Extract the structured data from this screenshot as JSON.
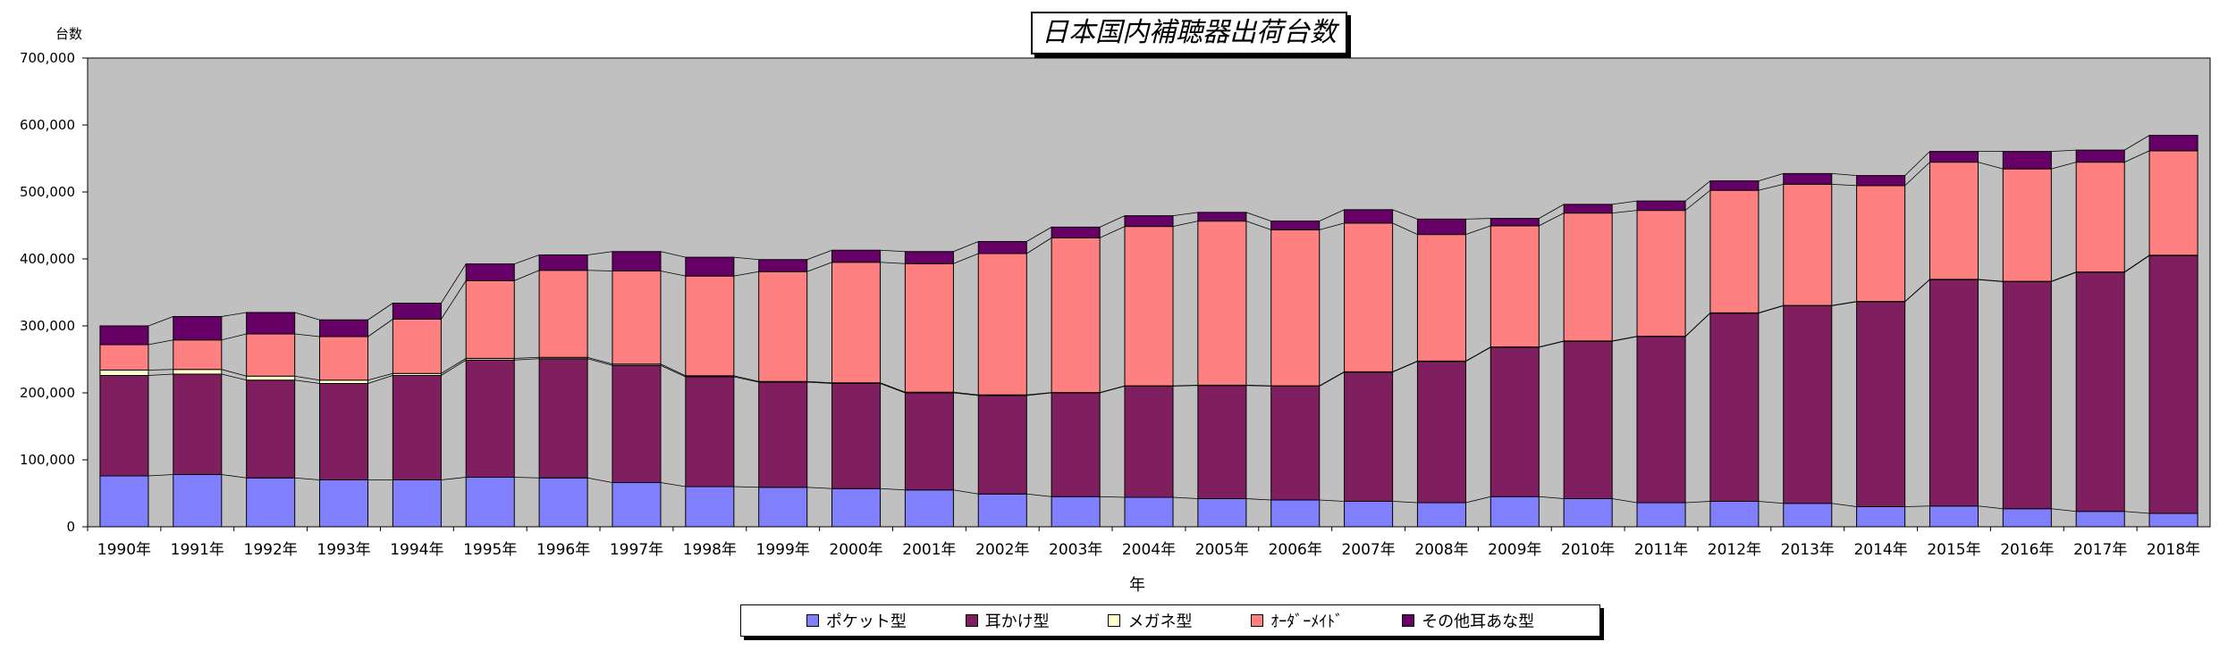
{
  "chart_data": {
    "type": "bar",
    "stacked": true,
    "title": "日本国内補聴器出荷台数",
    "xlabel": "年",
    "ylabel": "台数",
    "ylim": [
      0,
      700000
    ],
    "yticks": [
      "0",
      "100,000",
      "200,000",
      "300,000",
      "400,000",
      "500,000",
      "600,000",
      "700,000"
    ],
    "grid": false,
    "legend_position": "bottom",
    "plot_background": "#c0c0c0",
    "categories": [
      "1990年",
      "1991年",
      "1992年",
      "1993年",
      "1994年",
      "1995年",
      "1996年",
      "1997年",
      "1998年",
      "1999年",
      "2000年",
      "2001年",
      "2002年",
      "2003年",
      "2004年",
      "2005年",
      "2006年",
      "2007年",
      "2008年",
      "2009年",
      "2010年",
      "2011年",
      "2012年",
      "2013年",
      "2014年",
      "2015年",
      "2016年",
      "2017年",
      "2018年"
    ],
    "series": [
      {
        "name": "ポケット型",
        "color": "#8080ff",
        "values": [
          76000,
          78000,
          73000,
          70000,
          70000,
          74000,
          73000,
          66000,
          60000,
          59000,
          57000,
          55000,
          49000,
          45000,
          44000,
          42000,
          40000,
          38000,
          36000,
          45000,
          42000,
          36000,
          38000,
          35000,
          30000,
          31000,
          27000,
          23000,
          20000
        ]
      },
      {
        "name": "耳かけ型",
        "color": "#7f1f5f",
        "values": [
          150000,
          150000,
          146000,
          144000,
          156000,
          175000,
          178000,
          175000,
          164000,
          157000,
          157000,
          145000,
          147000,
          155000,
          166000,
          169000,
          170000,
          193000,
          211000,
          223000,
          235000,
          248000,
          281000,
          295000,
          306000,
          338000,
          339000,
          357000,
          385000
        ]
      },
      {
        "name": "メガネ型",
        "color": "#ffffcc",
        "values": [
          8000,
          7000,
          6000,
          5000,
          3000,
          2500,
          2000,
          2000,
          1500,
          1000,
          1000,
          1000,
          1000,
          500,
          500,
          500,
          500,
          500,
          500,
          500,
          500,
          500,
          500,
          500,
          500,
          500,
          500,
          500,
          500
        ]
      },
      {
        "name": "ｵｰﾀﾞｰﾒｲﾄﾞ",
        "color": "#ff8080",
        "values": [
          38000,
          44000,
          63000,
          65000,
          81000,
          116000,
          130000,
          139000,
          149000,
          164000,
          180000,
          192000,
          211000,
          231000,
          238000,
          245000,
          233000,
          222000,
          189000,
          181000,
          191000,
          188000,
          183000,
          181000,
          173000,
          175000,
          168000,
          164000,
          156000
        ]
      },
      {
        "name": "その他耳あな型",
        "color": "#660066",
        "values": [
          28000,
          35000,
          32000,
          25000,
          24000,
          25000,
          23000,
          29000,
          28000,
          18000,
          18000,
          18000,
          18000,
          16000,
          16000,
          13000,
          13000,
          20000,
          23000,
          11000,
          13000,
          14000,
          14000,
          16000,
          15000,
          16000,
          26000,
          18000,
          23000
        ]
      }
    ]
  }
}
